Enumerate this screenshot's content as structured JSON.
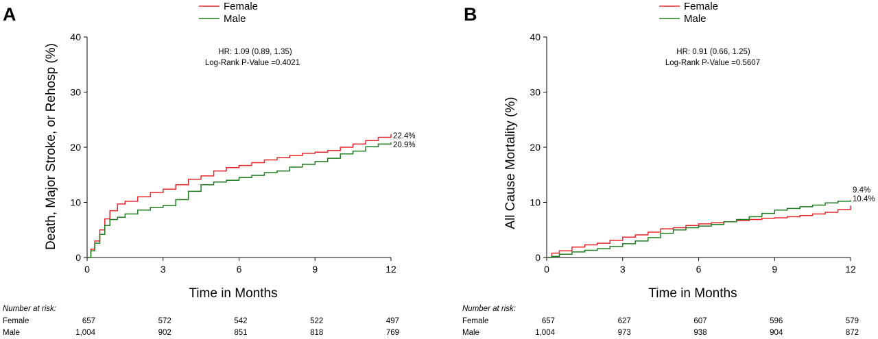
{
  "legend": {
    "female": {
      "label": "Female",
      "color": "#e8262a"
    },
    "male": {
      "label": "Male",
      "color": "#1e7d1e"
    }
  },
  "risk_table": {
    "title": "Number at risk:",
    "row_labels": [
      "Female",
      "Male"
    ]
  },
  "chart_data": [
    {
      "panel": "A",
      "type": "line",
      "ylabel": "Death, Major Stroke, or Rehosp (%)",
      "xlabel": "Time in Months",
      "xlim": [
        0,
        12
      ],
      "ylim": [
        0,
        40
      ],
      "xticks": [
        "0",
        "3",
        "6",
        "9",
        "12"
      ],
      "yticks": [
        "0",
        "10",
        "20",
        "30",
        "40"
      ],
      "annotation": [
        "HR: 1.09 (0.89, 1.35)",
        "Log-Rank P-Value =0.4021"
      ],
      "series": [
        {
          "name": "Female",
          "color": "#e8262a",
          "end_label": "22.4%",
          "x": [
            0,
            0.15,
            0.3,
            0.5,
            0.7,
            0.9,
            1.2,
            1.5,
            2,
            2.5,
            3,
            3.5,
            4,
            4.5,
            5,
            5.5,
            6,
            6.5,
            7,
            7.5,
            8,
            8.5,
            9,
            9.5,
            10,
            10.5,
            11,
            11.5,
            12
          ],
          "y": [
            0,
            1.5,
            3.0,
            5.0,
            7.0,
            8.5,
            9.7,
            10.2,
            11.0,
            11.8,
            12.4,
            13.2,
            14.2,
            14.8,
            15.7,
            16.3,
            16.7,
            17.2,
            17.7,
            18.1,
            18.5,
            18.9,
            19.1,
            19.4,
            20.0,
            20.6,
            21.2,
            21.8,
            22.4
          ]
        },
        {
          "name": "Male",
          "color": "#1e7d1e",
          "end_label": "20.9%",
          "x": [
            0,
            0.15,
            0.3,
            0.5,
            0.7,
            0.9,
            1.2,
            1.5,
            2,
            2.5,
            3,
            3.5,
            4,
            4.5,
            5,
            5.5,
            6,
            6.5,
            7,
            7.5,
            8,
            8.5,
            9,
            9.5,
            10,
            10.5,
            11,
            11.5,
            12
          ],
          "y": [
            0,
            1.2,
            2.6,
            4.2,
            5.8,
            6.9,
            7.3,
            7.9,
            8.6,
            9.1,
            9.4,
            10.5,
            12.0,
            13.2,
            13.7,
            14.0,
            14.5,
            14.9,
            15.4,
            15.7,
            16.4,
            16.9,
            17.4,
            18.0,
            18.8,
            19.3,
            20.1,
            20.6,
            20.9
          ]
        }
      ],
      "risk_timepoints": [
        "0",
        "3",
        "6",
        "9",
        "12"
      ],
      "number_at_risk": {
        "Female": [
          "657",
          "572",
          "542",
          "522",
          "497"
        ],
        "Male": [
          "1,004",
          "902",
          "851",
          "818",
          "769"
        ]
      }
    },
    {
      "panel": "B",
      "type": "line",
      "ylabel": "All Cause Mortality (%)",
      "xlabel": "Time in Months",
      "xlim": [
        0,
        12
      ],
      "ylim": [
        0,
        40
      ],
      "xticks": [
        "0",
        "3",
        "6",
        "9",
        "12"
      ],
      "yticks": [
        "0",
        "10",
        "20",
        "30",
        "40"
      ],
      "annotation": [
        "HR: 0.91 (0.66, 1.25)",
        "Log-Rank P-Value =0.5607"
      ],
      "series": [
        {
          "name": "Female",
          "color": "#e8262a",
          "end_label": "9.4%",
          "x": [
            0,
            0.2,
            0.5,
            1,
            1.5,
            2,
            2.5,
            3,
            3.5,
            4,
            4.5,
            5,
            5.5,
            6,
            6.5,
            7,
            7.5,
            8,
            8.5,
            9,
            9.5,
            10,
            10.5,
            11,
            11.5,
            12
          ],
          "y": [
            0,
            0.8,
            1.2,
            1.9,
            2.3,
            2.6,
            3.1,
            3.7,
            4.1,
            4.6,
            5.2,
            5.4,
            5.8,
            6.1,
            6.3,
            6.5,
            6.7,
            6.9,
            7.1,
            7.2,
            7.4,
            7.6,
            7.9,
            8.2,
            8.7,
            9.4
          ]
        },
        {
          "name": "Male",
          "color": "#1e7d1e",
          "end_label": "10.4%",
          "x": [
            0,
            0.2,
            0.5,
            1,
            1.5,
            2,
            2.5,
            3,
            3.5,
            4,
            4.5,
            5,
            5.5,
            6,
            6.5,
            7,
            7.5,
            8,
            8.5,
            9,
            9.5,
            10,
            10.5,
            11,
            11.5,
            12
          ],
          "y": [
            0,
            0.2,
            0.6,
            1.0,
            1.3,
            1.6,
            2.0,
            2.5,
            3.0,
            3.6,
            4.4,
            5.0,
            5.4,
            5.7,
            6.0,
            6.5,
            6.9,
            7.4,
            8.0,
            8.6,
            8.9,
            9.2,
            9.5,
            9.9,
            10.2,
            10.4
          ]
        }
      ],
      "risk_timepoints": [
        "0",
        "3",
        "6",
        "9",
        "12"
      ],
      "number_at_risk": {
        "Female": [
          "657",
          "627",
          "607",
          "596",
          "579"
        ],
        "Male": [
          "1,004",
          "973",
          "938",
          "904",
          "872"
        ]
      }
    }
  ]
}
